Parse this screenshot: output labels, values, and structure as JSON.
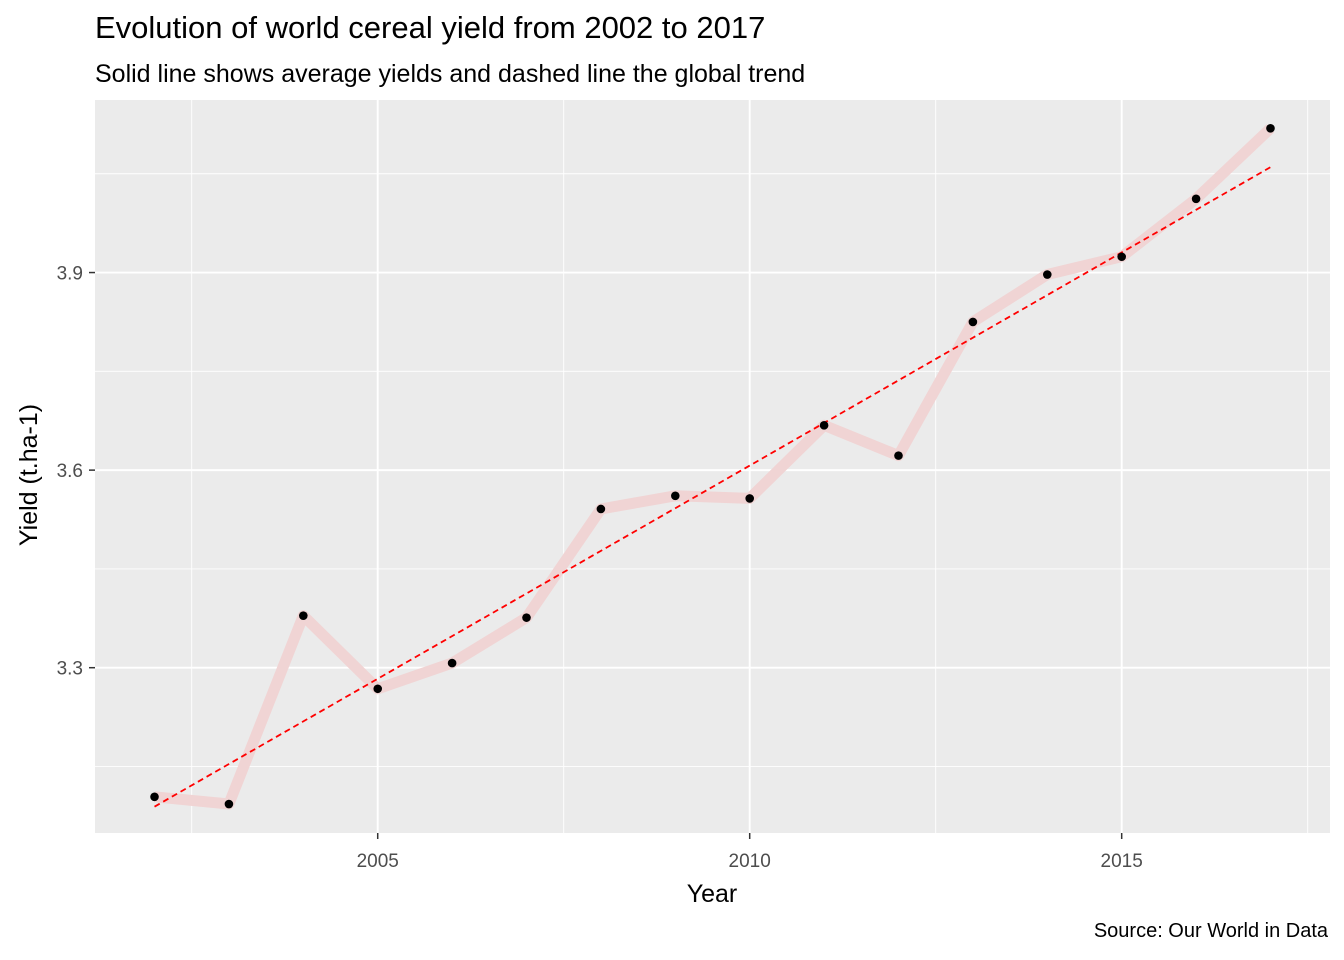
{
  "chart_data": {
    "type": "line",
    "title": "Evolution of world cereal yield from 2002 to 2017",
    "subtitle": "Solid line shows average yields and dashed line the global trend",
    "caption": "Source: Our World in Data",
    "xlabel": "Year",
    "ylabel": "Yield (t.ha-1)",
    "xlim": [
      2001.2,
      2017.8
    ],
    "ylim": [
      3.049,
      4.162
    ],
    "x_ticks": [
      2005,
      2010,
      2015
    ],
    "x_tick_labels": [
      "2005",
      "2010",
      "2015"
    ],
    "y_ticks": [
      3.3,
      3.6,
      3.9
    ],
    "y_tick_labels": [
      "3.3",
      "3.6",
      "3.9"
    ],
    "grid": true,
    "legend": "none",
    "x": [
      2002,
      2003,
      2004,
      2005,
      2006,
      2007,
      2008,
      2009,
      2010,
      2011,
      2012,
      2013,
      2014,
      2015,
      2016,
      2017
    ],
    "series": [
      {
        "type": "line+points",
        "values": [
          3.104,
          3.093,
          3.379,
          3.268,
          3.307,
          3.376,
          3.541,
          3.561,
          3.557,
          3.668,
          3.622,
          3.825,
          3.897,
          3.924,
          4.012,
          4.119
        ],
        "line_color": "#f0d4d4",
        "point_color": "#000000"
      },
      {
        "type": "trend",
        "x": [
          2002,
          2017
        ],
        "values": [
          3.089,
          4.06
        ],
        "line_color": "#ff0000",
        "dash": "dashed"
      }
    ],
    "colors": {
      "panel_background": "#ebebeb",
      "grid": "#ffffff",
      "tick_text": "#4d4d4d"
    }
  }
}
